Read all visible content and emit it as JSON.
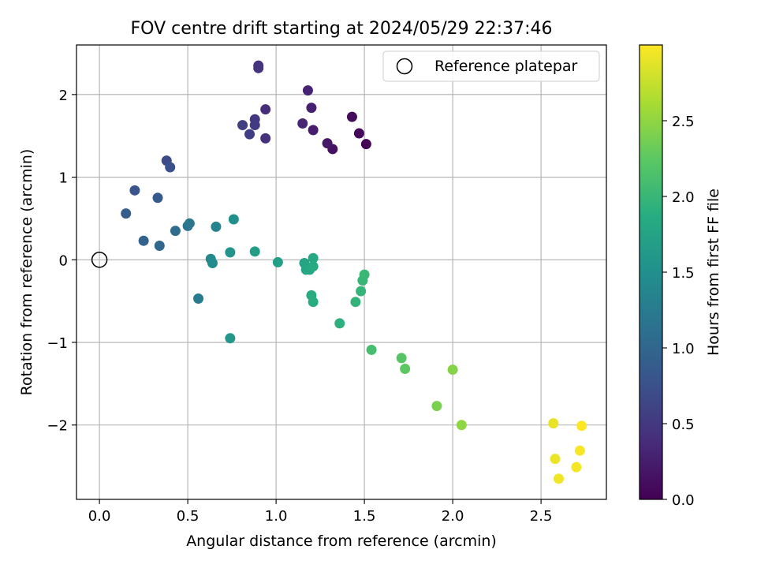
{
  "chart_data": {
    "type": "scatter",
    "title": "FOV centre drift starting at 2024/05/29 22:37:46",
    "xlabel": "Angular distance from reference (arcmin)",
    "ylabel": "Rotation from reference (arcmin)",
    "xlim": [
      -0.13,
      2.87
    ],
    "ylim": [
      -2.9,
      2.6
    ],
    "xticks": [
      0.0,
      0.5,
      1.0,
      1.5,
      2.0,
      2.5
    ],
    "xtick_labels": [
      "0.0",
      "0.5",
      "1.0",
      "1.5",
      "2.0",
      "2.5"
    ],
    "yticks": [
      -2,
      -1,
      0,
      1,
      2
    ],
    "ytick_labels": [
      "−2",
      "−1",
      "0",
      "1",
      "2"
    ],
    "grid": true,
    "legend": {
      "label": "Reference platepar",
      "location": "top-right",
      "marker": "open-circle"
    },
    "reference_point": {
      "x": 0.0,
      "y": 0.0
    },
    "colorbar": {
      "label": "Hours from first FF file",
      "colormap": "viridis",
      "range": [
        0.0,
        3.0
      ],
      "ticks": [
        0.0,
        0.5,
        1.0,
        1.5,
        2.0,
        2.5
      ],
      "tick_labels": [
        "0.0",
        "0.5",
        "1.0",
        "1.5",
        "2.0",
        "2.5"
      ]
    },
    "points": [
      {
        "x": 1.51,
        "y": 1.4,
        "h": 0.0
      },
      {
        "x": 1.47,
        "y": 1.53,
        "h": 0.05
      },
      {
        "x": 1.43,
        "y": 1.73,
        "h": 0.1
      },
      {
        "x": 1.32,
        "y": 1.34,
        "h": 0.15
      },
      {
        "x": 1.29,
        "y": 1.41,
        "h": 0.2
      },
      {
        "x": 1.21,
        "y": 1.57,
        "h": 0.25
      },
      {
        "x": 1.2,
        "y": 1.84,
        "h": 0.28
      },
      {
        "x": 1.18,
        "y": 2.05,
        "h": 0.3
      },
      {
        "x": 1.15,
        "y": 1.65,
        "h": 0.33
      },
      {
        "x": 0.94,
        "y": 1.82,
        "h": 0.4
      },
      {
        "x": 0.94,
        "y": 1.47,
        "h": 0.43
      },
      {
        "x": 0.9,
        "y": 2.35,
        "h": 0.45
      },
      {
        "x": 0.9,
        "y": 2.32,
        "h": 0.47
      },
      {
        "x": 0.88,
        "y": 1.7,
        "h": 0.5
      },
      {
        "x": 0.88,
        "y": 1.63,
        "h": 0.53
      },
      {
        "x": 0.85,
        "y": 1.52,
        "h": 0.55
      },
      {
        "x": 0.81,
        "y": 1.63,
        "h": 0.58
      },
      {
        "x": 0.38,
        "y": 1.2,
        "h": 0.7
      },
      {
        "x": 0.4,
        "y": 1.12,
        "h": 0.75
      },
      {
        "x": 0.2,
        "y": 0.84,
        "h": 0.8
      },
      {
        "x": 0.33,
        "y": 0.75,
        "h": 0.85
      },
      {
        "x": 0.15,
        "y": 0.56,
        "h": 0.9
      },
      {
        "x": 0.25,
        "y": 0.23,
        "h": 0.95
      },
      {
        "x": 0.34,
        "y": 0.17,
        "h": 1.0
      },
      {
        "x": 0.43,
        "y": 0.35,
        "h": 1.05
      },
      {
        "x": 0.5,
        "y": 0.41,
        "h": 1.15
      },
      {
        "x": 0.51,
        "y": 0.44,
        "h": 1.2
      },
      {
        "x": 0.56,
        "y": -0.47,
        "h": 1.25
      },
      {
        "x": 0.66,
        "y": 0.4,
        "h": 1.35
      },
      {
        "x": 0.63,
        "y": 0.01,
        "h": 1.4
      },
      {
        "x": 0.64,
        "y": -0.04,
        "h": 1.45
      },
      {
        "x": 0.76,
        "y": 0.49,
        "h": 1.5
      },
      {
        "x": 0.74,
        "y": 0.09,
        "h": 1.55
      },
      {
        "x": 0.74,
        "y": -0.95,
        "h": 1.6
      },
      {
        "x": 0.88,
        "y": 0.1,
        "h": 1.65
      },
      {
        "x": 1.01,
        "y": -0.03,
        "h": 1.7
      },
      {
        "x": 1.16,
        "y": -0.04,
        "h": 1.75
      },
      {
        "x": 1.17,
        "y": -0.12,
        "h": 1.78
      },
      {
        "x": 1.19,
        "y": -0.12,
        "h": 1.8
      },
      {
        "x": 1.21,
        "y": 0.02,
        "h": 1.82
      },
      {
        "x": 1.21,
        "y": -0.08,
        "h": 1.84
      },
      {
        "x": 1.2,
        "y": -0.43,
        "h": 1.86
      },
      {
        "x": 1.21,
        "y": -0.51,
        "h": 1.88
      },
      {
        "x": 1.36,
        "y": -0.77,
        "h": 1.92
      },
      {
        "x": 1.45,
        "y": -0.51,
        "h": 1.96
      },
      {
        "x": 1.48,
        "y": -0.38,
        "h": 1.98
      },
      {
        "x": 1.49,
        "y": -0.25,
        "h": 2.0
      },
      {
        "x": 1.5,
        "y": -0.18,
        "h": 2.02
      },
      {
        "x": 1.54,
        "y": -1.09,
        "h": 2.1
      },
      {
        "x": 1.71,
        "y": -1.19,
        "h": 2.2
      },
      {
        "x": 1.73,
        "y": -1.32,
        "h": 2.25
      },
      {
        "x": 1.91,
        "y": -1.77,
        "h": 2.4
      },
      {
        "x": 2.0,
        "y": -1.33,
        "h": 2.45
      },
      {
        "x": 2.05,
        "y": -2.0,
        "h": 2.5
      },
      {
        "x": 2.57,
        "y": -1.98,
        "h": 2.9
      },
      {
        "x": 2.58,
        "y": -2.41,
        "h": 2.92
      },
      {
        "x": 2.6,
        "y": -2.65,
        "h": 2.94
      },
      {
        "x": 2.7,
        "y": -2.51,
        "h": 2.96
      },
      {
        "x": 2.72,
        "y": -2.31,
        "h": 2.98
      },
      {
        "x": 2.73,
        "y": -2.01,
        "h": 3.0
      }
    ]
  }
}
